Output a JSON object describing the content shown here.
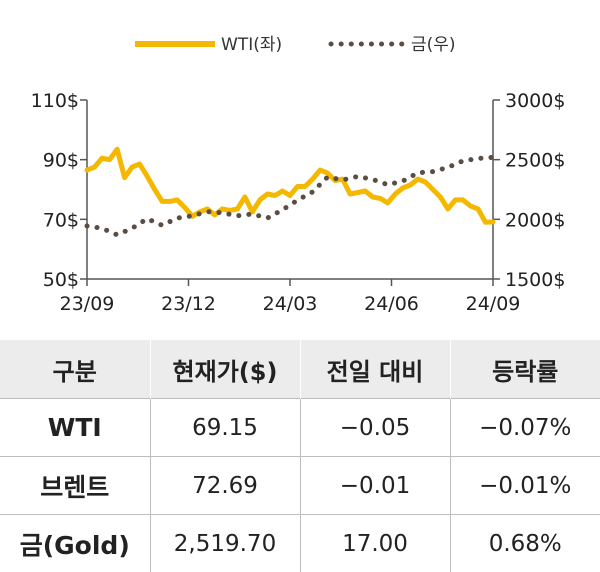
{
  "chart_data": {
    "type": "line",
    "legend": [
      {
        "name": "WTI(좌)",
        "color": "#f5b800",
        "style": "solid"
      },
      {
        "name": "금(우)",
        "color": "#5a4e44",
        "style": "dotted"
      }
    ],
    "legend_position": "top-center",
    "x_ticks": [
      "23/09",
      "23/12",
      "24/03",
      "24/06",
      "24/09"
    ],
    "y_left_ticks": [
      "110$",
      "90$",
      "70$",
      "50$"
    ],
    "y_right_ticks": [
      "3000$",
      "2500$",
      "2000$",
      "1500$"
    ],
    "y_left_range": [
      50,
      110
    ],
    "y_right_range": [
      1500,
      3000
    ],
    "grid": false,
    "series": [
      {
        "name": "WTI(좌)",
        "axis": "left",
        "x": [
          "2023-09-01",
          "2023-09-08",
          "2023-09-15",
          "2023-09-22",
          "2023-09-29",
          "2023-10-06",
          "2023-10-13",
          "2023-10-20",
          "2023-10-27",
          "2023-11-03",
          "2023-11-10",
          "2023-11-17",
          "2023-11-24",
          "2023-12-01",
          "2023-12-08",
          "2023-12-15",
          "2023-12-22",
          "2023-12-29",
          "2024-01-05",
          "2024-01-12",
          "2024-01-19",
          "2024-01-26",
          "2024-02-02",
          "2024-02-09",
          "2024-02-16",
          "2024-02-23",
          "2024-03-01",
          "2024-03-08",
          "2024-03-15",
          "2024-03-22",
          "2024-03-29",
          "2024-04-05",
          "2024-04-12",
          "2024-04-19",
          "2024-04-26",
          "2024-05-03",
          "2024-05-10",
          "2024-05-17",
          "2024-05-24",
          "2024-05-31",
          "2024-06-07",
          "2024-06-14",
          "2024-06-21",
          "2024-06-28",
          "2024-07-05",
          "2024-07-12",
          "2024-07-19",
          "2024-07-26",
          "2024-08-02",
          "2024-08-09",
          "2024-08-16",
          "2024-08-23",
          "2024-08-30",
          "2024-09-06",
          "2024-09-13"
        ],
        "values": [
          86.5,
          87.5,
          90.5,
          90.0,
          93.5,
          84.0,
          87.5,
          88.5,
          84.5,
          80.0,
          76.0,
          76.0,
          76.5,
          74.0,
          71.0,
          72.5,
          73.5,
          71.5,
          73.5,
          73.0,
          73.5,
          77.5,
          72.5,
          76.5,
          78.5,
          78.0,
          79.5,
          78.0,
          81.0,
          81.0,
          83.5,
          86.5,
          85.5,
          83.0,
          83.5,
          78.5,
          79.0,
          79.5,
          77.5,
          77.0,
          75.5,
          78.5,
          80.5,
          81.5,
          83.5,
          82.5,
          80.0,
          77.5,
          73.5,
          76.5,
          76.5,
          74.5,
          73.5,
          69.0,
          69.15
        ]
      },
      {
        "name": "금(우)",
        "axis": "right",
        "x": [
          "2023-09-01",
          "2023-09-15",
          "2023-09-29",
          "2023-10-13",
          "2023-10-27",
          "2023-11-10",
          "2023-11-24",
          "2023-12-08",
          "2023-12-22",
          "2024-01-05",
          "2024-01-19",
          "2024-02-02",
          "2024-02-16",
          "2024-03-01",
          "2024-03-15",
          "2024-03-29",
          "2024-04-12",
          "2024-04-26",
          "2024-05-10",
          "2024-05-24",
          "2024-06-07",
          "2024-06-21",
          "2024-07-05",
          "2024-07-19",
          "2024-08-02",
          "2024-08-16",
          "2024-08-30",
          "2024-09-13"
        ],
        "values": [
          1945,
          1925,
          1870,
          1925,
          2005,
          1950,
          2010,
          2030,
          2065,
          2055,
          2030,
          2045,
          2010,
          2080,
          2160,
          2230,
          2355,
          2330,
          2360,
          2335,
          2290,
          2320,
          2390,
          2400,
          2435,
          2490,
          2510,
          2519.7
        ]
      }
    ]
  },
  "table": {
    "headers": [
      "구분",
      "현재가($)",
      "전일 대비",
      "등락률"
    ],
    "rows": [
      {
        "name": "WTI",
        "price": "69.15",
        "change": "−0.05",
        "rate": "−0.07%"
      },
      {
        "name": "브렌트",
        "price": "72.69",
        "change": "−0.01",
        "rate": "−0.01%"
      },
      {
        "name": "금(Gold)",
        "price": "2,519.70",
        "change": "17.00",
        "rate": "0.68%"
      }
    ]
  }
}
